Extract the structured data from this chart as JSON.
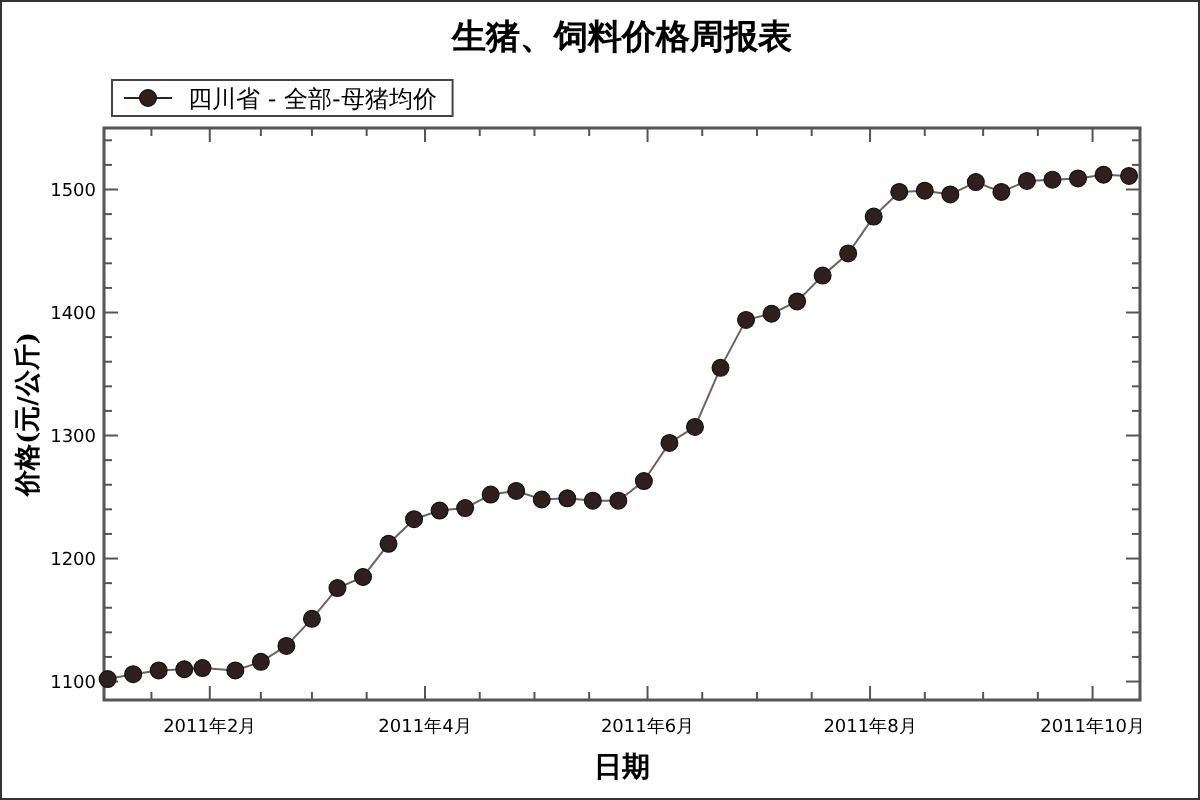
{
  "chart_data": {
    "type": "line",
    "title": "生猪、饲料价格周报表",
    "xlabel": "日期",
    "ylabel": "价格(元/公斤)",
    "x": [
      "2011-01-04",
      "2011-01-11",
      "2011-01-18",
      "2011-01-25",
      "2011-01-30",
      "2011-02-08",
      "2011-02-15",
      "2011-02-22",
      "2011-03-01",
      "2011-03-08",
      "2011-03-15",
      "2011-03-22",
      "2011-03-29",
      "2011-04-05",
      "2011-04-12",
      "2011-04-19",
      "2011-04-26",
      "2011-05-03",
      "2011-05-10",
      "2011-05-17",
      "2011-05-24",
      "2011-05-31",
      "2011-06-07",
      "2011-06-14",
      "2011-06-21",
      "2011-06-28",
      "2011-07-05",
      "2011-07-12",
      "2011-07-19",
      "2011-07-26",
      "2011-08-02",
      "2011-08-09",
      "2011-08-16",
      "2011-08-23",
      "2011-08-30",
      "2011-09-06",
      "2011-09-13",
      "2011-09-20",
      "2011-09-27",
      "2011-10-04",
      "2011-10-11"
    ],
    "series": [
      {
        "name": "四川省 - 全部-母猪均价",
        "color": "#2e2020",
        "values": [
          1102,
          1106,
          1109,
          1110,
          1111,
          1109,
          1116,
          1129,
          1151,
          1176,
          1185,
          1212,
          1232,
          1239,
          1241,
          1252,
          1255,
          1248,
          1249,
          1247,
          1247,
          1263,
          1294,
          1307,
          1355,
          1394,
          1399,
          1409,
          1430,
          1448,
          1478,
          1498,
          1499,
          1496,
          1506,
          1498,
          1507,
          1508,
          1509,
          1512,
          1511
        ]
      }
    ],
    "xlim": [
      "2011-01-03",
      "2011-10-14"
    ],
    "xticks": [
      {
        "value": "2011-01-16",
        "label": null
      },
      {
        "value": "2011-02-01",
        "label": "2011年2月"
      },
      {
        "value": "2011-02-15",
        "label": null
      },
      {
        "value": "2011-03-01",
        "label": null
      },
      {
        "value": "2011-03-16",
        "label": null
      },
      {
        "value": "2011-04-01",
        "label": "2011年4月"
      },
      {
        "value": "2011-04-16",
        "label": null
      },
      {
        "value": "2011-05-01",
        "label": null
      },
      {
        "value": "2011-05-16",
        "label": null
      },
      {
        "value": "2011-06-01",
        "label": "2011年6月"
      },
      {
        "value": "2011-06-16",
        "label": null
      },
      {
        "value": "2011-07-01",
        "label": null
      },
      {
        "value": "2011-07-16",
        "label": null
      },
      {
        "value": "2011-08-01",
        "label": "2011年8月"
      },
      {
        "value": "2011-08-16",
        "label": null
      },
      {
        "value": "2011-09-01",
        "label": null
      },
      {
        "value": "2011-09-16",
        "label": null
      },
      {
        "value": "2011-10-01",
        "label": "2011年10月"
      }
    ],
    "ylim": [
      1085,
      1550
    ],
    "yticks": [
      1100,
      {
        "value": 1120,
        "label": null
      },
      {
        "value": 1140,
        "label": null
      },
      {
        "value": 1160,
        "label": null
      },
      {
        "value": 1180,
        "label": null
      },
      1200,
      {
        "value": 1220,
        "label": null
      },
      {
        "value": 1240,
        "label": null
      },
      {
        "value": 1260,
        "label": null
      },
      {
        "value": 1280,
        "label": null
      },
      1300,
      {
        "value": 1320,
        "label": null
      },
      {
        "value": 1340,
        "label": null
      },
      {
        "value": 1360,
        "label": null
      },
      {
        "value": 1380,
        "label": null
      },
      1400,
      {
        "value": 1420,
        "label": null
      },
      {
        "value": 1440,
        "label": null
      },
      {
        "value": 1460,
        "label": null
      },
      {
        "value": 1480,
        "label": null
      },
      1500,
      {
        "value": 1520,
        "label": null
      },
      {
        "value": 1540,
        "label": null
      }
    ],
    "grid": false,
    "legend": "top left",
    "marker": "circle",
    "line_style": "solid"
  }
}
